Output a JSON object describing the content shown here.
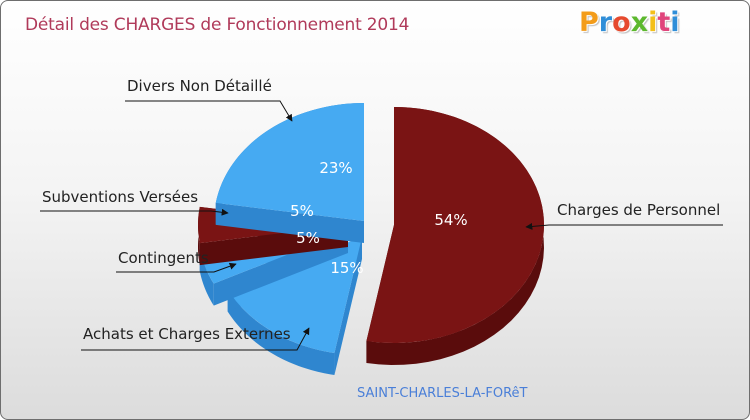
{
  "title": "Détail des CHARGES de Fonctionnement 2014",
  "logo": {
    "text": "Proxiti",
    "letter_colors": [
      "#f39c1a",
      "#2f8ed8",
      "#e64a2e",
      "#5cb82e",
      "#f3c01a",
      "#e0457c",
      "#2f8ed8"
    ]
  },
  "footer": "SAINT-CHARLES-LA-FORêT",
  "chart_data": {
    "type": "pie",
    "title": "Détail des CHARGES de Fonctionnement 2014",
    "slices": [
      {
        "label": "Charges de Personnel",
        "value": 54,
        "display": "54%",
        "color": "#7a1414",
        "side": "#5a0c0c"
      },
      {
        "label": "Achats et Charges Externes",
        "value": 15,
        "display": "15%",
        "color": "#46aaf2",
        "side": "#2f86cf"
      },
      {
        "label": "Contingents",
        "value": 5,
        "display": "5%",
        "color": "#46aaf2",
        "side": "#2f86cf"
      },
      {
        "label": "Subventions Versées",
        "value": 5,
        "display": "5%",
        "color": "#7a1414",
        "side": "#5a0c0c"
      },
      {
        "label": "Divers Non Détaillé",
        "value": 23,
        "display": "23%",
        "color": "#46aaf2",
        "side": "#2f86cf"
      }
    ]
  }
}
